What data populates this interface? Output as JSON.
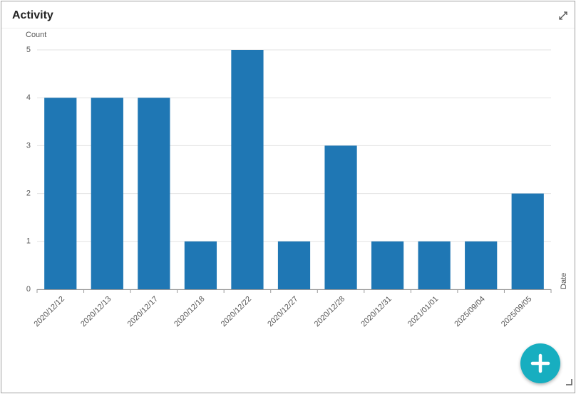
{
  "chart_data": {
    "type": "bar",
    "title": "Activity",
    "y_label": "Count",
    "x_label": "Date",
    "categories": [
      "2020/12/12",
      "2020/12/13",
      "2020/12/17",
      "2020/12/18",
      "2020/12/22",
      "2020/12/27",
      "2020/12/28",
      "2020/12/31",
      "2021/01/01",
      "2025/09/04",
      "2025/09/05"
    ],
    "values": [
      4,
      4,
      4,
      1,
      5,
      1,
      3,
      1,
      1,
      1,
      2
    ],
    "color": "#1f77b4",
    "ylim": [
      0,
      5
    ],
    "yticks": [
      0,
      1,
      2,
      3,
      4,
      5
    ],
    "grid": true
  }
}
